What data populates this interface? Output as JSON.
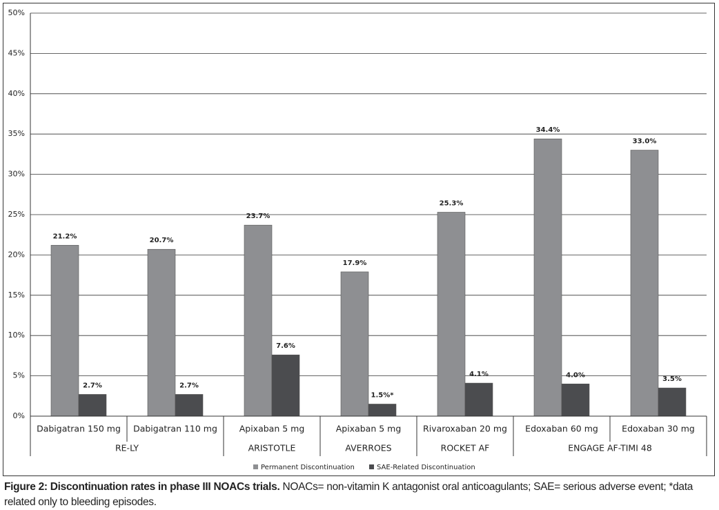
{
  "chart_data": {
    "type": "bar",
    "categories": [
      "Dabigatran 150 mg",
      "Dabigatran 110 mg",
      "Apixaban 5 mg",
      "Apixaban 5 mg",
      "Rivaroxaban 20 mg",
      "Edoxaban 60 mg",
      "Edoxaban 30 mg"
    ],
    "groups": [
      {
        "label": "RE-LY",
        "count": 2
      },
      {
        "label": "ARISTOTLE",
        "count": 1
      },
      {
        "label": "AVERROES",
        "count": 1
      },
      {
        "label": "ROCKET AF",
        "count": 1
      },
      {
        "label": "ENGAGE AF-TIMI 48",
        "count": 2
      }
    ],
    "series": [
      {
        "name": "Permanent Discontinuation",
        "color": "#8e8f92",
        "values": [
          21.2,
          20.7,
          23.7,
          17.9,
          25.3,
          34.4,
          33.0
        ],
        "value_labels": [
          "21.2%",
          "20.7%",
          "23.7%",
          "17.9%",
          "25.3%",
          "34.4%",
          "33.0%"
        ]
      },
      {
        "name": "SAE-Related Discontinuation",
        "color": "#4b4c4f",
        "values": [
          2.7,
          2.7,
          7.6,
          1.5,
          4.1,
          4.0,
          3.5
        ],
        "value_labels": [
          "2.7%",
          "2.7%",
          "7.6%",
          "1.5%*",
          "4.1%",
          "4.0%",
          "3.5%"
        ]
      }
    ],
    "ylim": [
      0,
      50
    ],
    "yticks": [
      {
        "value": 0,
        "label": "0%"
      },
      {
        "value": 5,
        "label": "5%"
      },
      {
        "value": 10,
        "label": "10%"
      },
      {
        "value": 15,
        "label": "15%"
      },
      {
        "value": 20,
        "label": "20%"
      },
      {
        "value": 25,
        "label": "25%"
      },
      {
        "value": 30,
        "label": "30%"
      },
      {
        "value": 35,
        "label": "35%"
      },
      {
        "value": 40,
        "label": "40%"
      },
      {
        "value": 45,
        "label": "45%"
      },
      {
        "value": 50,
        "label": "50%"
      }
    ],
    "grid": true,
    "legend": "bottom"
  },
  "caption": {
    "title": "Figure 2: Discontinuation rates in phase III NOACs trials.",
    "text": "NOACs= non-vitamin K antagonist oral anticoagulants; SAE= serious adverse event; *data related only to bleeding episodes."
  }
}
